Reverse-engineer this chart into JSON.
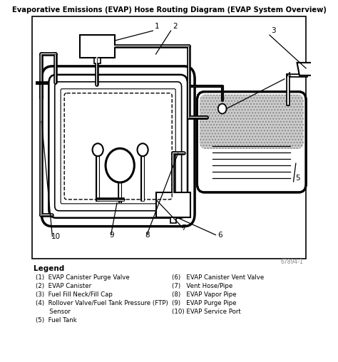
{
  "title": "Evaporative Emissions (EVAP) Hose Routing Diagram (EVAP System Overview)",
  "bg_color": "#ffffff",
  "legend_title": "Legend",
  "legend_left": [
    "(1)  EVAP Canister Purge Valve",
    "(2)  EVAP Canister",
    "(3)  Fuel Fill Neck/Fill Cap",
    "(4)  Rollover Valve/Fuel Tank Pressure (FTP)",
    "      Sensor",
    "(5)  Fuel Tank"
  ],
  "legend_right": [
    "(6)  EVAP Canister Vent Valve",
    "(7)  Vent Hose/Pipe",
    "(8)  EVAP Vapor Pipe",
    "(9)  EVAP Purge Pipe",
    "(10) EVAP Service Port"
  ],
  "watermark": "67894-1"
}
